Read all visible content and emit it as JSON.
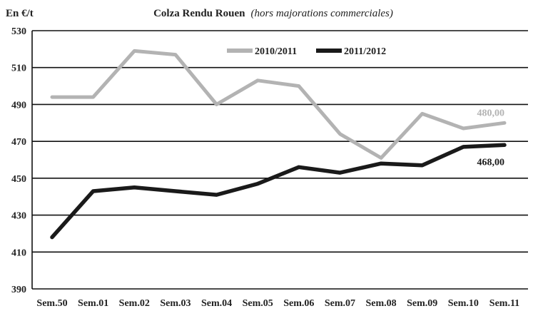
{
  "chart_data": {
    "type": "line",
    "title": "Colza Rendu Rouen",
    "subtitle": "(hors majorations commerciales)",
    "ylabel": "En €/t",
    "xlabel": "",
    "ylim": [
      390,
      530
    ],
    "yticks": [
      390,
      410,
      430,
      450,
      470,
      490,
      510,
      530
    ],
    "grid": true,
    "legend": "top-center",
    "categories": [
      "Sem.50",
      "Sem.01",
      "Sem.02",
      "Sem.03",
      "Sem.04",
      "Sem.05",
      "Sem.06",
      "Sem.07",
      "Sem.08",
      "Sem.09",
      "Sem.10",
      "Sem.11"
    ],
    "series": [
      {
        "name": "2010/2011",
        "color": "#b3b3b3",
        "values": [
          494,
          494,
          519,
          517,
          490,
          503,
          500,
          474,
          461,
          485,
          477,
          480
        ],
        "end_label": "480,00"
      },
      {
        "name": "2011/2012",
        "color": "#1a1a1a",
        "values": [
          418,
          443,
          445,
          443,
          441,
          447,
          456,
          453,
          458,
          457,
          467,
          468
        ],
        "end_label": "468,00"
      }
    ]
  }
}
